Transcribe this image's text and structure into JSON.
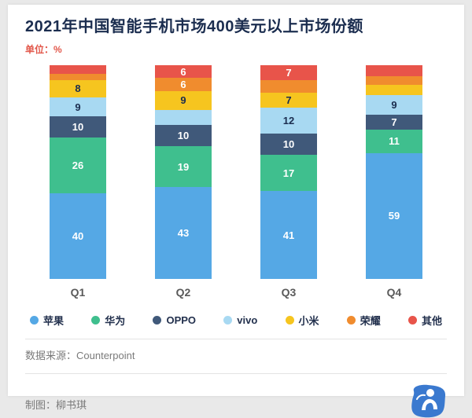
{
  "page": {
    "title": "2021年中国智能手机市场400美元以上市场份额",
    "unit_label": "单位：%",
    "source_label": "数据来源：Counterpoint",
    "credit_label": "制图：柳书琪"
  },
  "chart_data": {
    "type": "bar",
    "stacked": true,
    "title": "2021年中国智能手机市场400美元以上市场份额",
    "unit": "%",
    "ylim": [
      0,
      100
    ],
    "grid": false,
    "legend_position": "bottom",
    "categories": [
      "Q1",
      "Q2",
      "Q3",
      "Q4"
    ],
    "series": [
      {
        "name": "苹果",
        "color": "#55a8e5",
        "label_color": "#ffffff",
        "values": [
          40,
          43,
          41,
          59
        ],
        "labels": [
          "40",
          "43",
          "41",
          "59"
        ]
      },
      {
        "name": "华为",
        "color": "#3fbf8e",
        "label_color": "#ffffff",
        "values": [
          26,
          19,
          17,
          11
        ],
        "labels": [
          "26",
          "19",
          "17",
          "11"
        ]
      },
      {
        "name": "OPPO",
        "color": "#40597a",
        "label_color": "#ffffff",
        "values": [
          10,
          10,
          10,
          7
        ],
        "labels": [
          "10",
          "10",
          "10",
          "7"
        ]
      },
      {
        "name": "vivo",
        "color": "#a8d9f2",
        "label_color": "#1b2d4f",
        "values": [
          9,
          7,
          12,
          9
        ],
        "labels": [
          "9",
          "",
          "12",
          "9"
        ]
      },
      {
        "name": "小米",
        "color": "#f6c51f",
        "label_color": "#1b2d4f",
        "values": [
          8,
          9,
          7,
          5
        ],
        "labels": [
          "8",
          "9",
          "7",
          ""
        ]
      },
      {
        "name": "荣耀",
        "color": "#f08c2e",
        "label_color": "#ffffff",
        "values": [
          3,
          6,
          6,
          4
        ],
        "labels": [
          "",
          "6",
          "",
          ""
        ]
      },
      {
        "name": "其他",
        "color": "#e8544a",
        "label_color": "#ffffff",
        "values": [
          4,
          6,
          7,
          5
        ],
        "labels": [
          "",
          "6",
          "7",
          ""
        ]
      }
    ]
  }
}
